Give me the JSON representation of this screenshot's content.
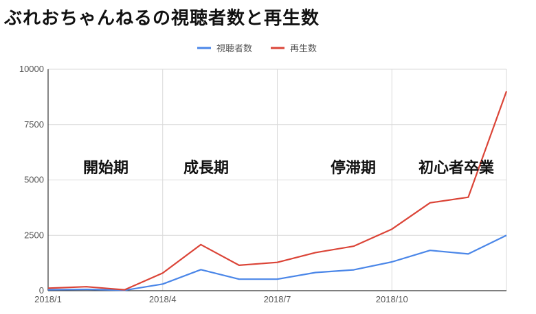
{
  "title": "ぶれおちゃんねるの視聴者数と再生数",
  "chart_data": {
    "type": "line",
    "x": [
      "2018/1",
      "2018/2",
      "2018/3",
      "2018/4",
      "2018/5",
      "2018/6",
      "2018/7",
      "2018/8",
      "2018/9",
      "2018/10",
      "2018/11",
      "2018/12",
      "2019/1"
    ],
    "xticks": [
      "2018/1",
      "2018/4",
      "2018/7",
      "2018/10"
    ],
    "yticks": [
      0,
      2500,
      5000,
      7500,
      10000
    ],
    "ylim": [
      0,
      10000
    ],
    "grid": true,
    "legend_position": "top",
    "series": [
      {
        "name": "視聴者数",
        "color": "#4a86e8",
        "values": [
          40,
          60,
          20,
          300,
          950,
          520,
          520,
          820,
          940,
          1300,
          1820,
          1660,
          2500
        ]
      },
      {
        "name": "再生数",
        "color": "#db4437",
        "values": [
          110,
          180,
          40,
          800,
          2080,
          1150,
          1280,
          1720,
          2010,
          2780,
          3970,
          4220,
          9000
        ]
      }
    ],
    "annotations": [
      "開始期",
      "成長期",
      "停滞期",
      "初心者卒業"
    ]
  }
}
